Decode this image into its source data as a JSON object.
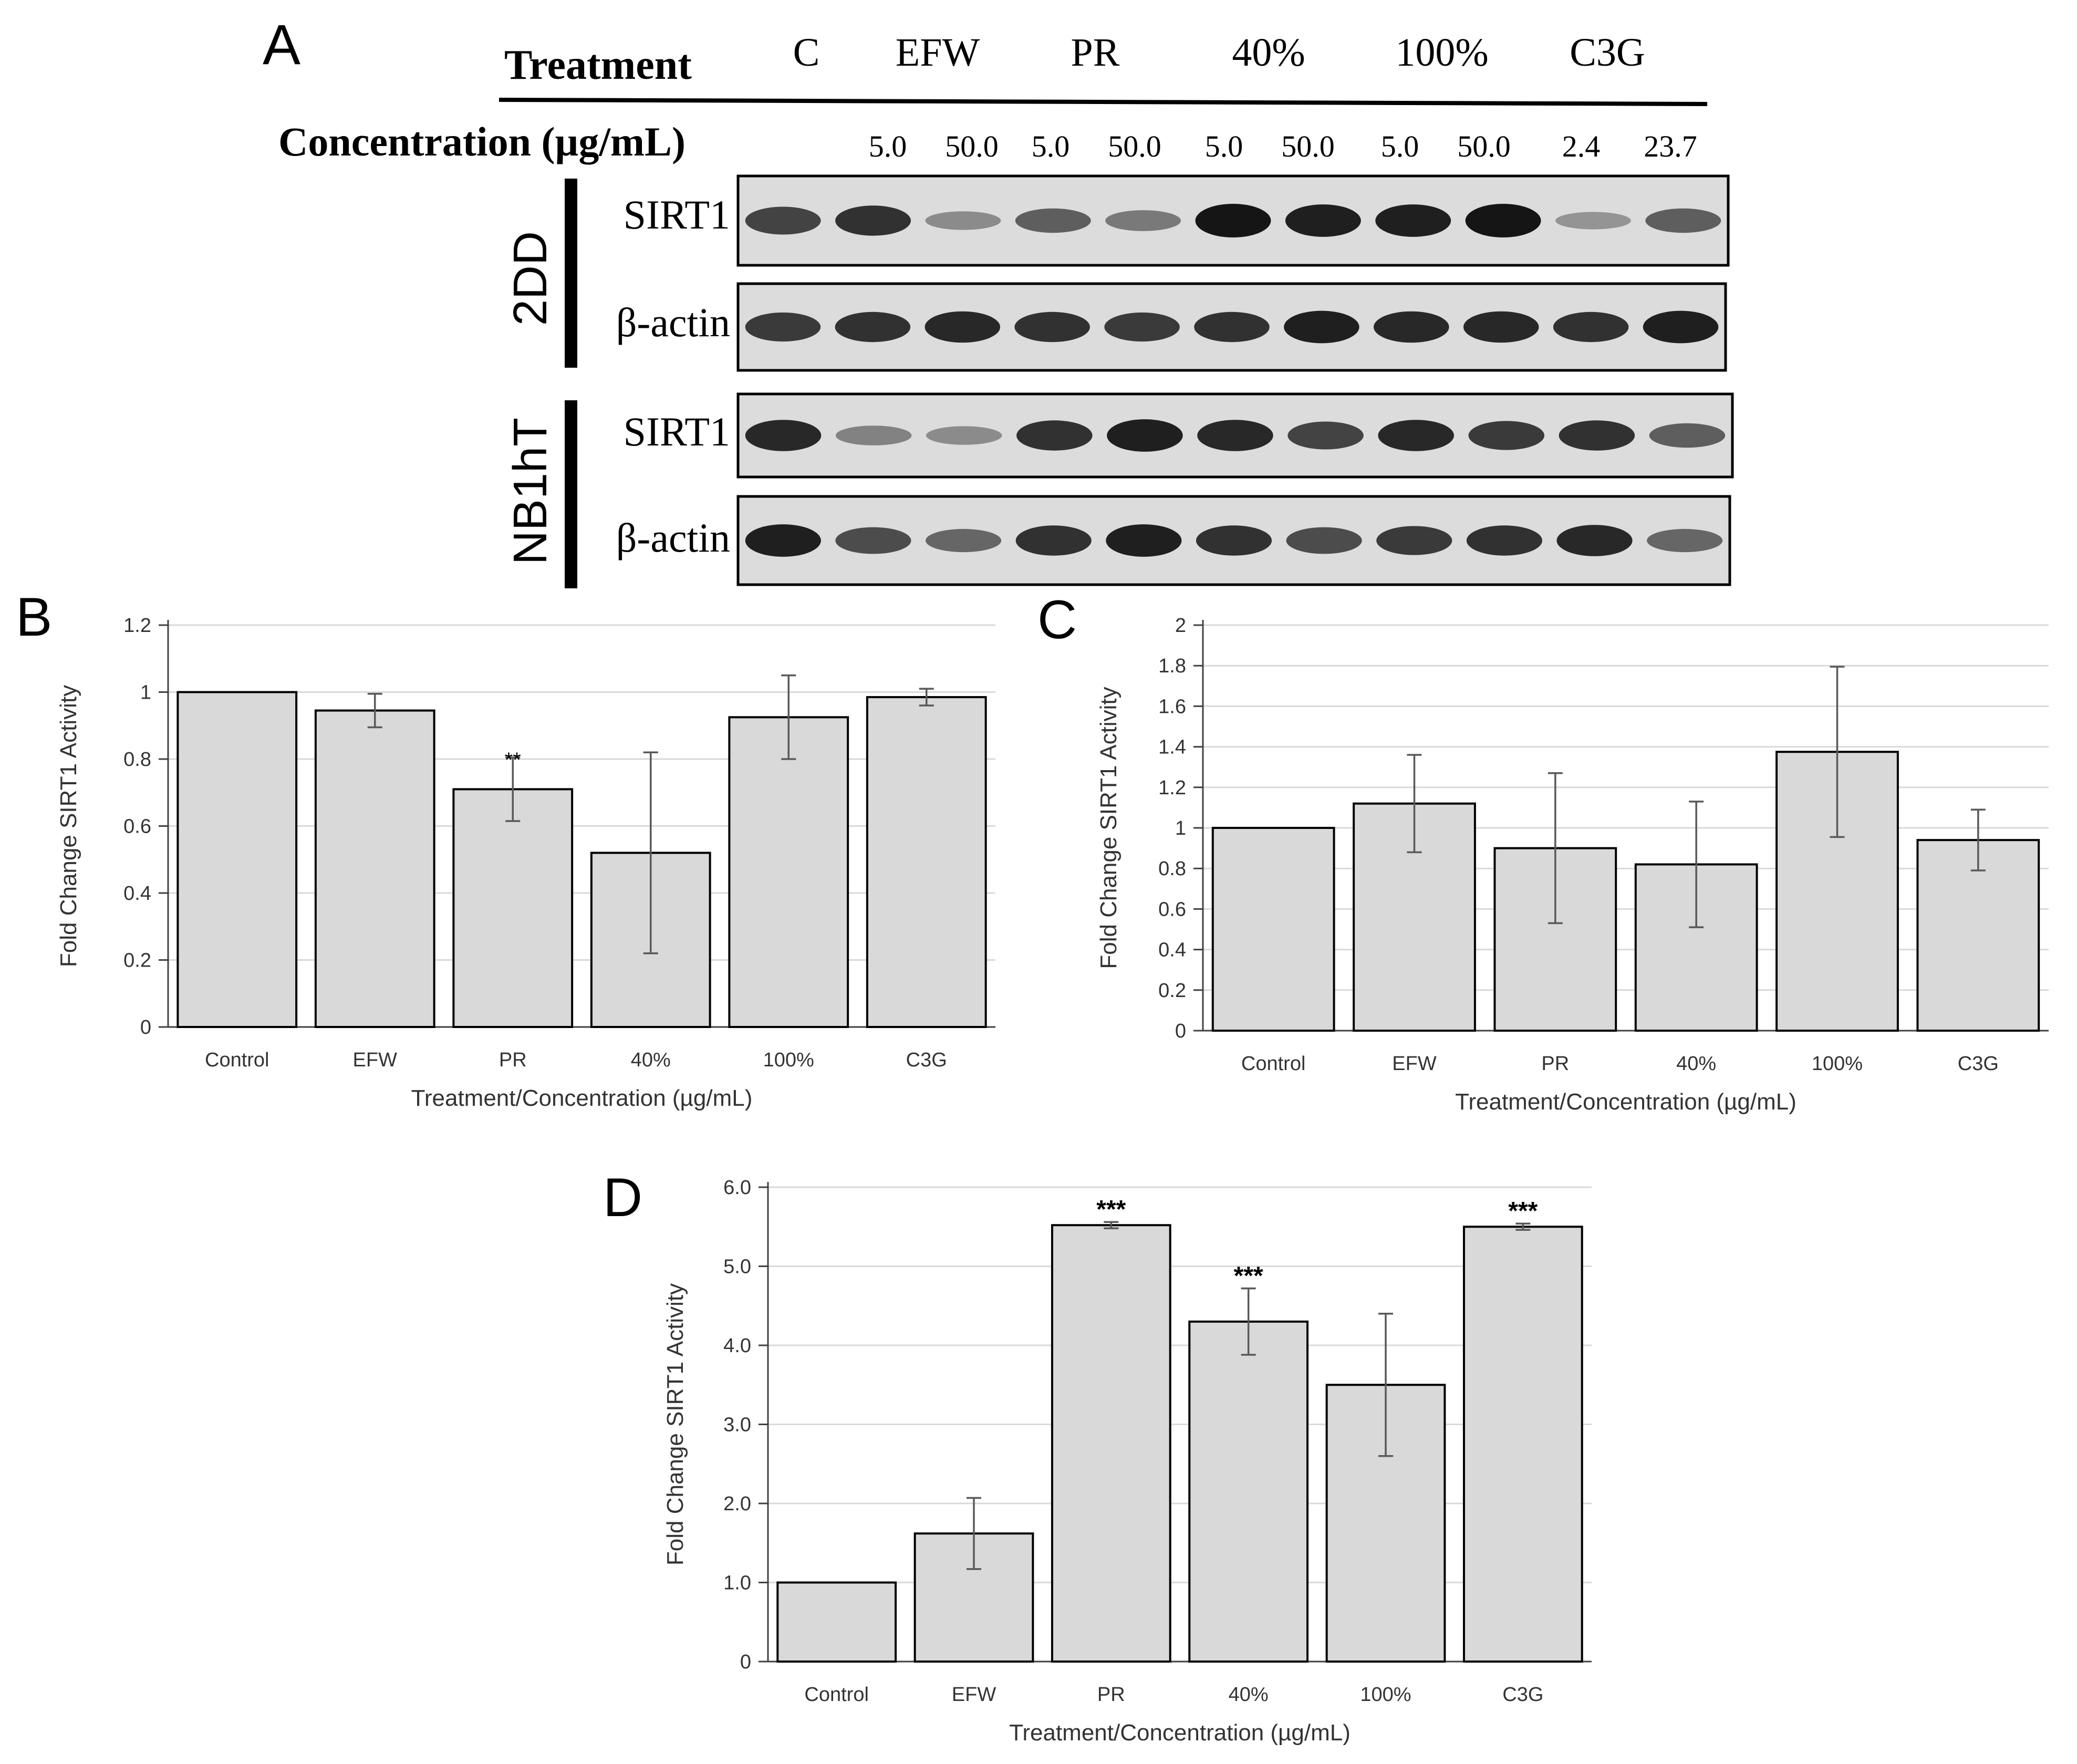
{
  "panel_a": {
    "label": "A",
    "treatment_title": "Treatment",
    "concentration_title": "Concentration (µg/mL)",
    "treatments": [
      "C",
      "EFW",
      "PR",
      "40%",
      "100%",
      "C3G"
    ],
    "concentrations": [
      "5.0",
      "50.0",
      "5.0",
      "50.0",
      "5.0",
      "50.0",
      "5.0",
      "50.0",
      "2.4",
      "23.7"
    ],
    "cell_lines": [
      {
        "name": "2DD",
        "rows": [
          "SIRT1",
          "β-actin"
        ],
        "band_intensity": {
          "SIRT1": [
            0.75,
            0.85,
            0.35,
            0.6,
            0.45,
            1.0,
            0.95,
            0.95,
            1.0,
            0.3,
            0.6
          ],
          "β-actin": [
            0.8,
            0.85,
            0.9,
            0.85,
            0.8,
            0.85,
            0.95,
            0.9,
            0.9,
            0.85,
            0.95
          ]
        }
      },
      {
        "name": "NB1hT",
        "rows": [
          "SIRT1",
          "β-actin"
        ],
        "band_intensity": {
          "SIRT1": [
            0.9,
            0.4,
            0.35,
            0.85,
            0.95,
            0.9,
            0.75,
            0.9,
            0.8,
            0.85,
            0.6
          ],
          "β-actin": [
            0.95,
            0.7,
            0.55,
            0.85,
            0.95,
            0.85,
            0.7,
            0.8,
            0.85,
            0.9,
            0.55
          ]
        }
      }
    ]
  },
  "chart_data": [
    {
      "panel": "B",
      "type": "bar",
      "categories": [
        "Control",
        "EFW",
        "PR",
        "40%",
        "100%",
        "C3G"
      ],
      "values": [
        1.0,
        0.945,
        0.71,
        0.52,
        0.925,
        0.985
      ],
      "errors": [
        0.0,
        0.05,
        0.095,
        0.3,
        0.125,
        0.025
      ],
      "annotations": [
        "",
        "",
        "**",
        "",
        "",
        ""
      ],
      "xlabel": "Treatment/Concentration (µg/mL)",
      "ylabel": "Fold Change SIRT1 Activity",
      "ylim": [
        0,
        1.2
      ],
      "yticks": [
        "0",
        "0.2",
        "0.4",
        "0.6",
        "0.8",
        "1",
        "1.2"
      ],
      "grid": true
    },
    {
      "panel": "C",
      "type": "bar",
      "categories": [
        "Control",
        "EFW",
        "PR",
        "40%",
        "100%",
        "C3G"
      ],
      "values": [
        1.0,
        1.12,
        0.9,
        0.82,
        1.375,
        0.94
      ],
      "errors": [
        0.0,
        0.24,
        0.37,
        0.31,
        0.42,
        0.15
      ],
      "annotations": [
        "",
        "",
        "",
        "",
        "",
        ""
      ],
      "xlabel": "Treatment/Concentration (µg/mL)",
      "ylabel": "Fold Change SIRT1 Activity",
      "ylim": [
        0,
        2
      ],
      "yticks": [
        "0",
        "0.2",
        "0.4",
        "0.6",
        "0.8",
        "1",
        "1.2",
        "1.4",
        "1.6",
        "1.8",
        "2"
      ],
      "grid": true
    },
    {
      "panel": "D",
      "type": "bar",
      "categories": [
        "Control",
        "EFW",
        "PR",
        "40%",
        "100%",
        "C3G"
      ],
      "values": [
        1.0,
        1.62,
        5.52,
        4.3,
        3.5,
        5.5
      ],
      "errors": [
        0.0,
        0.45,
        0.04,
        0.42,
        0.9,
        0.04
      ],
      "annotations": [
        "",
        "",
        "***",
        "***",
        "",
        "***"
      ],
      "xlabel": "Treatment/Concentration (µg/mL)",
      "ylabel": "Fold Change SIRT1 Activity",
      "ylim": [
        0,
        6
      ],
      "yticks": [
        "0",
        "1.0",
        "2.0",
        "3.0",
        "4.0",
        "5.0",
        "6.0"
      ],
      "grid": true
    }
  ]
}
